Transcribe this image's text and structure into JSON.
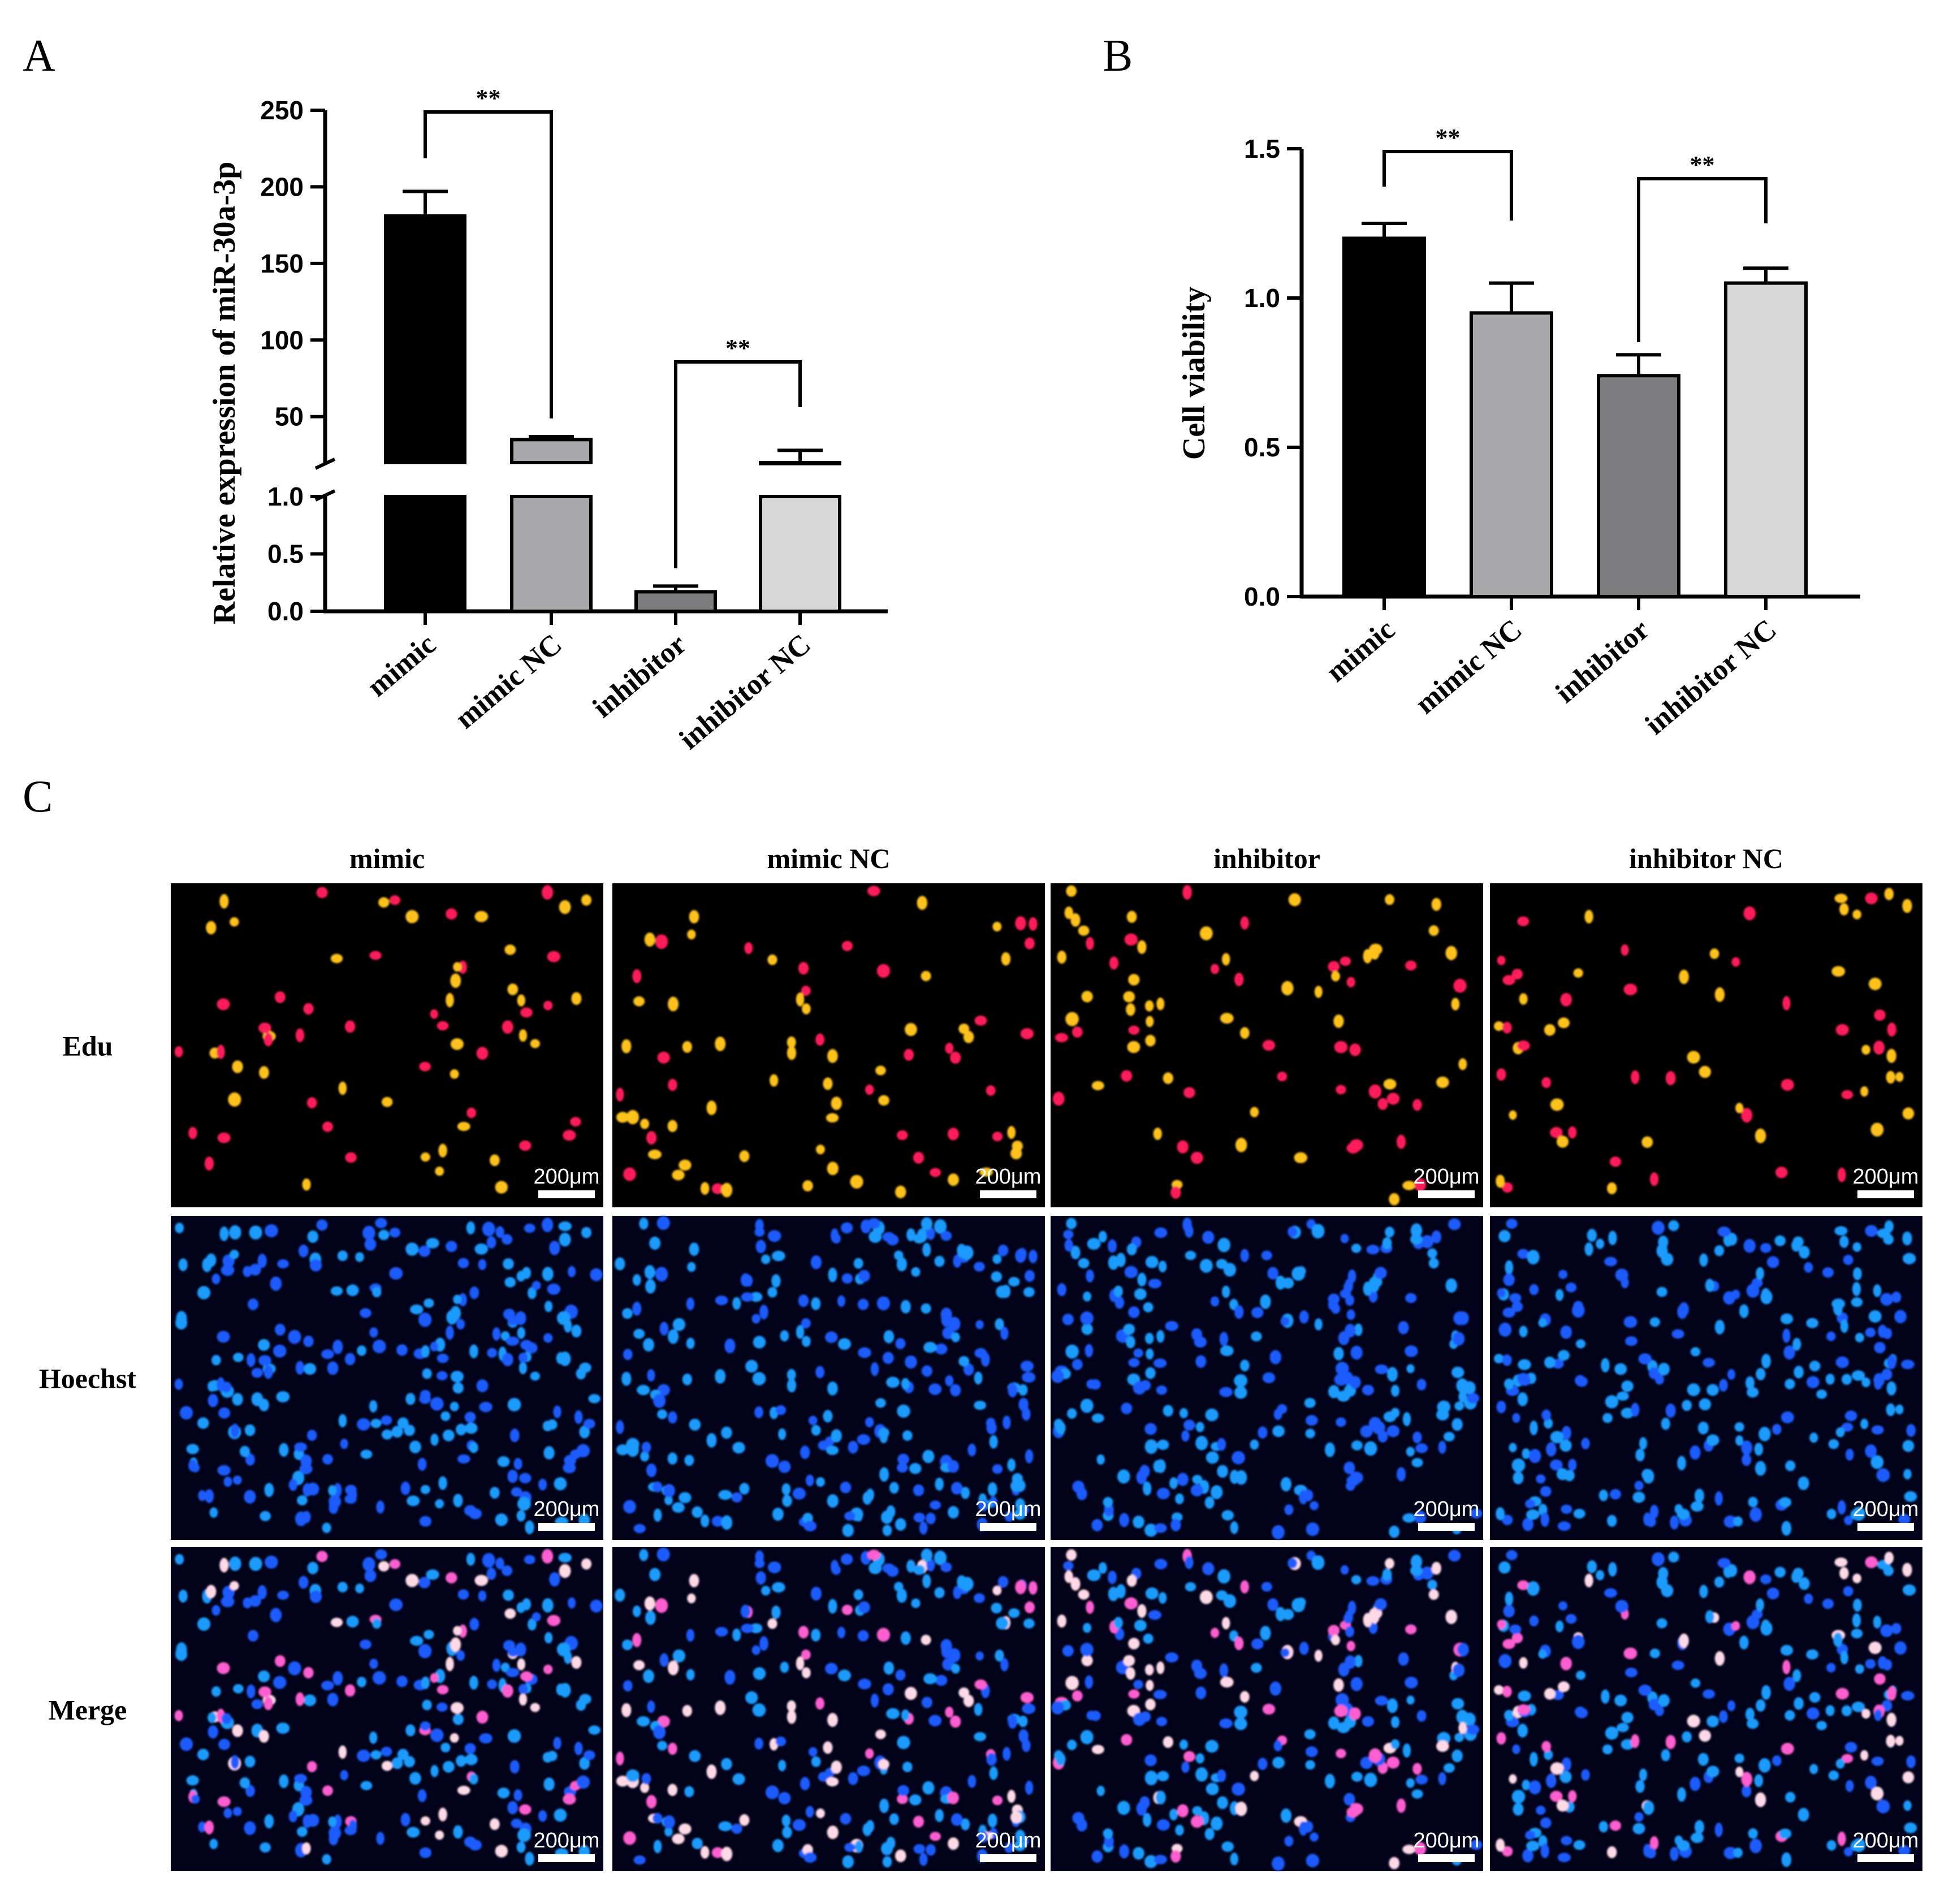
{
  "panel_letters": {
    "a": "A",
    "b": "B",
    "c": "C"
  },
  "chart_data": [
    {
      "type": "bar",
      "panel": "A",
      "title": "",
      "xlabel": "",
      "ylabel": "Relative expression of miR-30a-3p",
      "categories": [
        "mimic",
        "mimic NC",
        "inhibitor",
        "inhibitor NC"
      ],
      "values": [
        181,
        35,
        0.17,
        20
      ],
      "errors": [
        16,
        2,
        0.05,
        8
      ],
      "bar_colors": [
        "#000000",
        "#a8a8ab",
        "#7d7d80",
        "#d7d7d7"
      ],
      "axis_break": {
        "lower_range": [
          0,
          1.0
        ],
        "upper_range": [
          20,
          250
        ]
      },
      "lower_ticks": [
        "0.0",
        "0.5",
        "1.0"
      ],
      "upper_ticks": [
        "50",
        "100",
        "150",
        "200",
        "250"
      ],
      "significance": [
        {
          "from": 0,
          "to": 1,
          "label": "**"
        },
        {
          "from": 2,
          "to": 3,
          "label": "**"
        }
      ]
    },
    {
      "type": "bar",
      "panel": "B",
      "title": "",
      "xlabel": "",
      "ylabel": "Cell viability",
      "categories": [
        "mimic",
        "mimic NC",
        "inhibitor",
        "inhibitor NC"
      ],
      "values": [
        1.2,
        0.95,
        0.74,
        1.05
      ],
      "errors": [
        0.05,
        0.1,
        0.07,
        0.05
      ],
      "bar_colors": [
        "#000000",
        "#a8a8ab",
        "#7d7d80",
        "#d7d7d7"
      ],
      "ylim": [
        0,
        1.5
      ],
      "yticks": [
        "0.0",
        "0.5",
        "1.0",
        "1.5"
      ],
      "significance": [
        {
          "from": 0,
          "to": 1,
          "label": "**"
        },
        {
          "from": 2,
          "to": 3,
          "label": "**"
        }
      ]
    }
  ],
  "microscopy": {
    "columns": [
      "mimic",
      "mimic NC",
      "inhibitor",
      "inhibitor NC"
    ],
    "rows": [
      "Edu",
      "Hoechst",
      "Merge"
    ],
    "scale_bar": "200μm"
  }
}
